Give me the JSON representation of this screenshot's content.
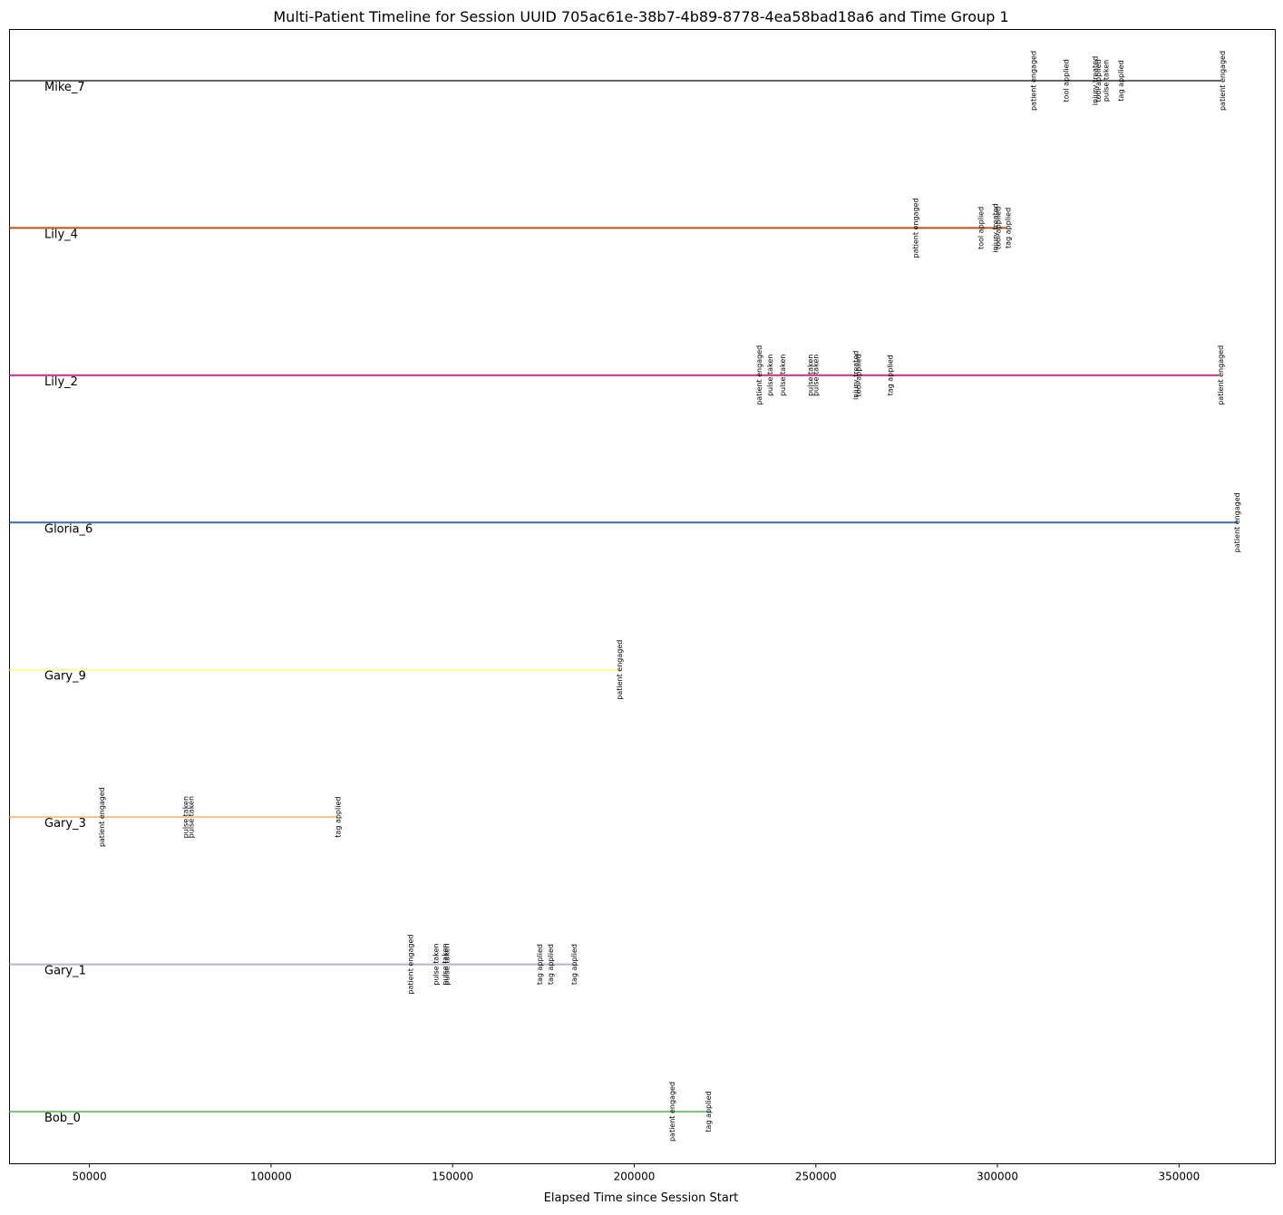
{
  "chart_data": {
    "type": "timeline",
    "title": "Multi-Patient Timeline for Session UUID 705ac61e-38b7-4b89-8778-4ea58bad18a6 and Time Group 1",
    "xlabel": "Elapsed Time since Session Start",
    "ylabel": "",
    "xlim": [
      28000,
      376500
    ],
    "xticks": [
      50000,
      100000,
      150000,
      200000,
      250000,
      300000,
      350000
    ],
    "grid": false,
    "series": [
      {
        "name": "Mike_7",
        "color": "#666666",
        "start": 28000,
        "end": 361500,
        "events": [
          {
            "label": "patient engaged",
            "x": 310000
          },
          {
            "label": "tool applied",
            "x": 319000
          },
          {
            "label": "injury treated",
            "x": 327000
          },
          {
            "label": "tool applied",
            "x": 327800
          },
          {
            "label": "pulse taken",
            "x": 330000
          },
          {
            "label": "tag applied",
            "x": 334000
          },
          {
            "label": "patient engaged",
            "x": 362000
          }
        ]
      },
      {
        "name": "Lily_4",
        "color": "#b5541e",
        "start": 28000,
        "end": 302500,
        "events": [
          {
            "label": "patient engaged",
            "x": 277500
          },
          {
            "label": "tool applied",
            "x": 295500
          },
          {
            "label": "injury treated",
            "x": 299500
          },
          {
            "label": "tool applied",
            "x": 300200
          },
          {
            "label": "tag applied",
            "x": 303000
          }
        ]
      },
      {
        "name": "Lily_2",
        "color": "#e7298a",
        "start": 28000,
        "end": 361000,
        "events": [
          {
            "label": "patient engaged",
            "x": 234500
          },
          {
            "label": "pulse taken",
            "x": 237500
          },
          {
            "label": "pulse taken",
            "x": 241000
          },
          {
            "label": "pulse taken",
            "x": 248500
          },
          {
            "label": "pulse taken",
            "x": 250000
          },
          {
            "label": "injury treated",
            "x": 261000
          },
          {
            "label": "tool applied",
            "x": 261800
          },
          {
            "label": "tag applied",
            "x": 270500
          },
          {
            "label": "patient engaged",
            "x": 361500
          }
        ]
      },
      {
        "name": "Gloria_6",
        "color": "#386cb0",
        "start": 28000,
        "end": 366000,
        "events": [
          {
            "label": "patient engaged",
            "x": 366000
          }
        ]
      },
      {
        "name": "Gary_9",
        "color": "#ffff99",
        "start": 28000,
        "end": 196000,
        "events": [
          {
            "label": "patient engaged",
            "x": 196000
          }
        ]
      },
      {
        "name": "Gary_3",
        "color": "#fdc086",
        "start": 28000,
        "end": 118500,
        "events": [
          {
            "label": "patient engaged",
            "x": 53500
          },
          {
            "label": "pulse taken",
            "x": 76500
          },
          {
            "label": "pulse taken",
            "x": 78000
          },
          {
            "label": "tag applied",
            "x": 118500
          }
        ]
      },
      {
        "name": "Gary_1",
        "color": "#beaed4",
        "start": 28000,
        "end": 184000,
        "events": [
          {
            "label": "patient engaged",
            "x": 138500
          },
          {
            "label": "pulse taken",
            "x": 145500
          },
          {
            "label": "pulse taken",
            "x": 148000
          },
          {
            "label": "pulse taken",
            "x": 148500
          },
          {
            "label": "tag applied",
            "x": 174000
          },
          {
            "label": "tag applied",
            "x": 177000
          },
          {
            "label": "tag applied",
            "x": 183500
          }
        ]
      },
      {
        "name": "Bob_0",
        "color": "#7fc97f",
        "start": 28000,
        "end": 221000,
        "events": [
          {
            "label": "patient engaged",
            "x": 210500
          },
          {
            "label": "tag applied",
            "x": 220500
          }
        ]
      }
    ]
  }
}
